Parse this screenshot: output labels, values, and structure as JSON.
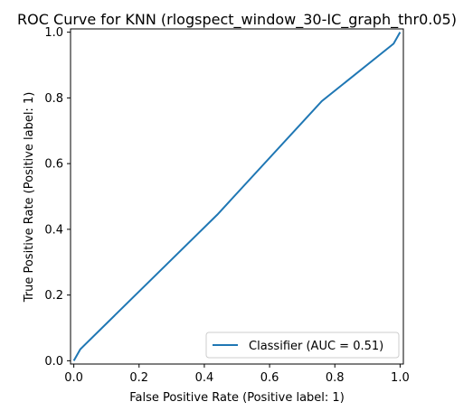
{
  "chart_data": {
    "type": "line",
    "title": "ROC Curve for KNN (rlogspect_window_30-IC_graph_thr0.05)",
    "xlabel": "False Positive Rate (Positive label: 1)",
    "ylabel": "True Positive Rate (Positive label: 1)",
    "xlim": [
      -0.01,
      1.01
    ],
    "ylim": [
      -0.01,
      1.01
    ],
    "xticks": [
      "0.0",
      "0.2",
      "0.4",
      "0.6",
      "0.8",
      "1.0"
    ],
    "yticks": [
      "0.0",
      "0.2",
      "0.4",
      "0.6",
      "0.8",
      "1.0"
    ],
    "legend_position": "lower-right",
    "grid": false,
    "series": [
      {
        "name": "Classifier (AUC = 0.51)",
        "color": "#1f77b4",
        "x": [
          0.0,
          0.02,
          0.44,
          0.76,
          0.98,
          1.0
        ],
        "y": [
          0.0,
          0.035,
          0.445,
          0.79,
          0.965,
          1.0
        ]
      }
    ]
  }
}
